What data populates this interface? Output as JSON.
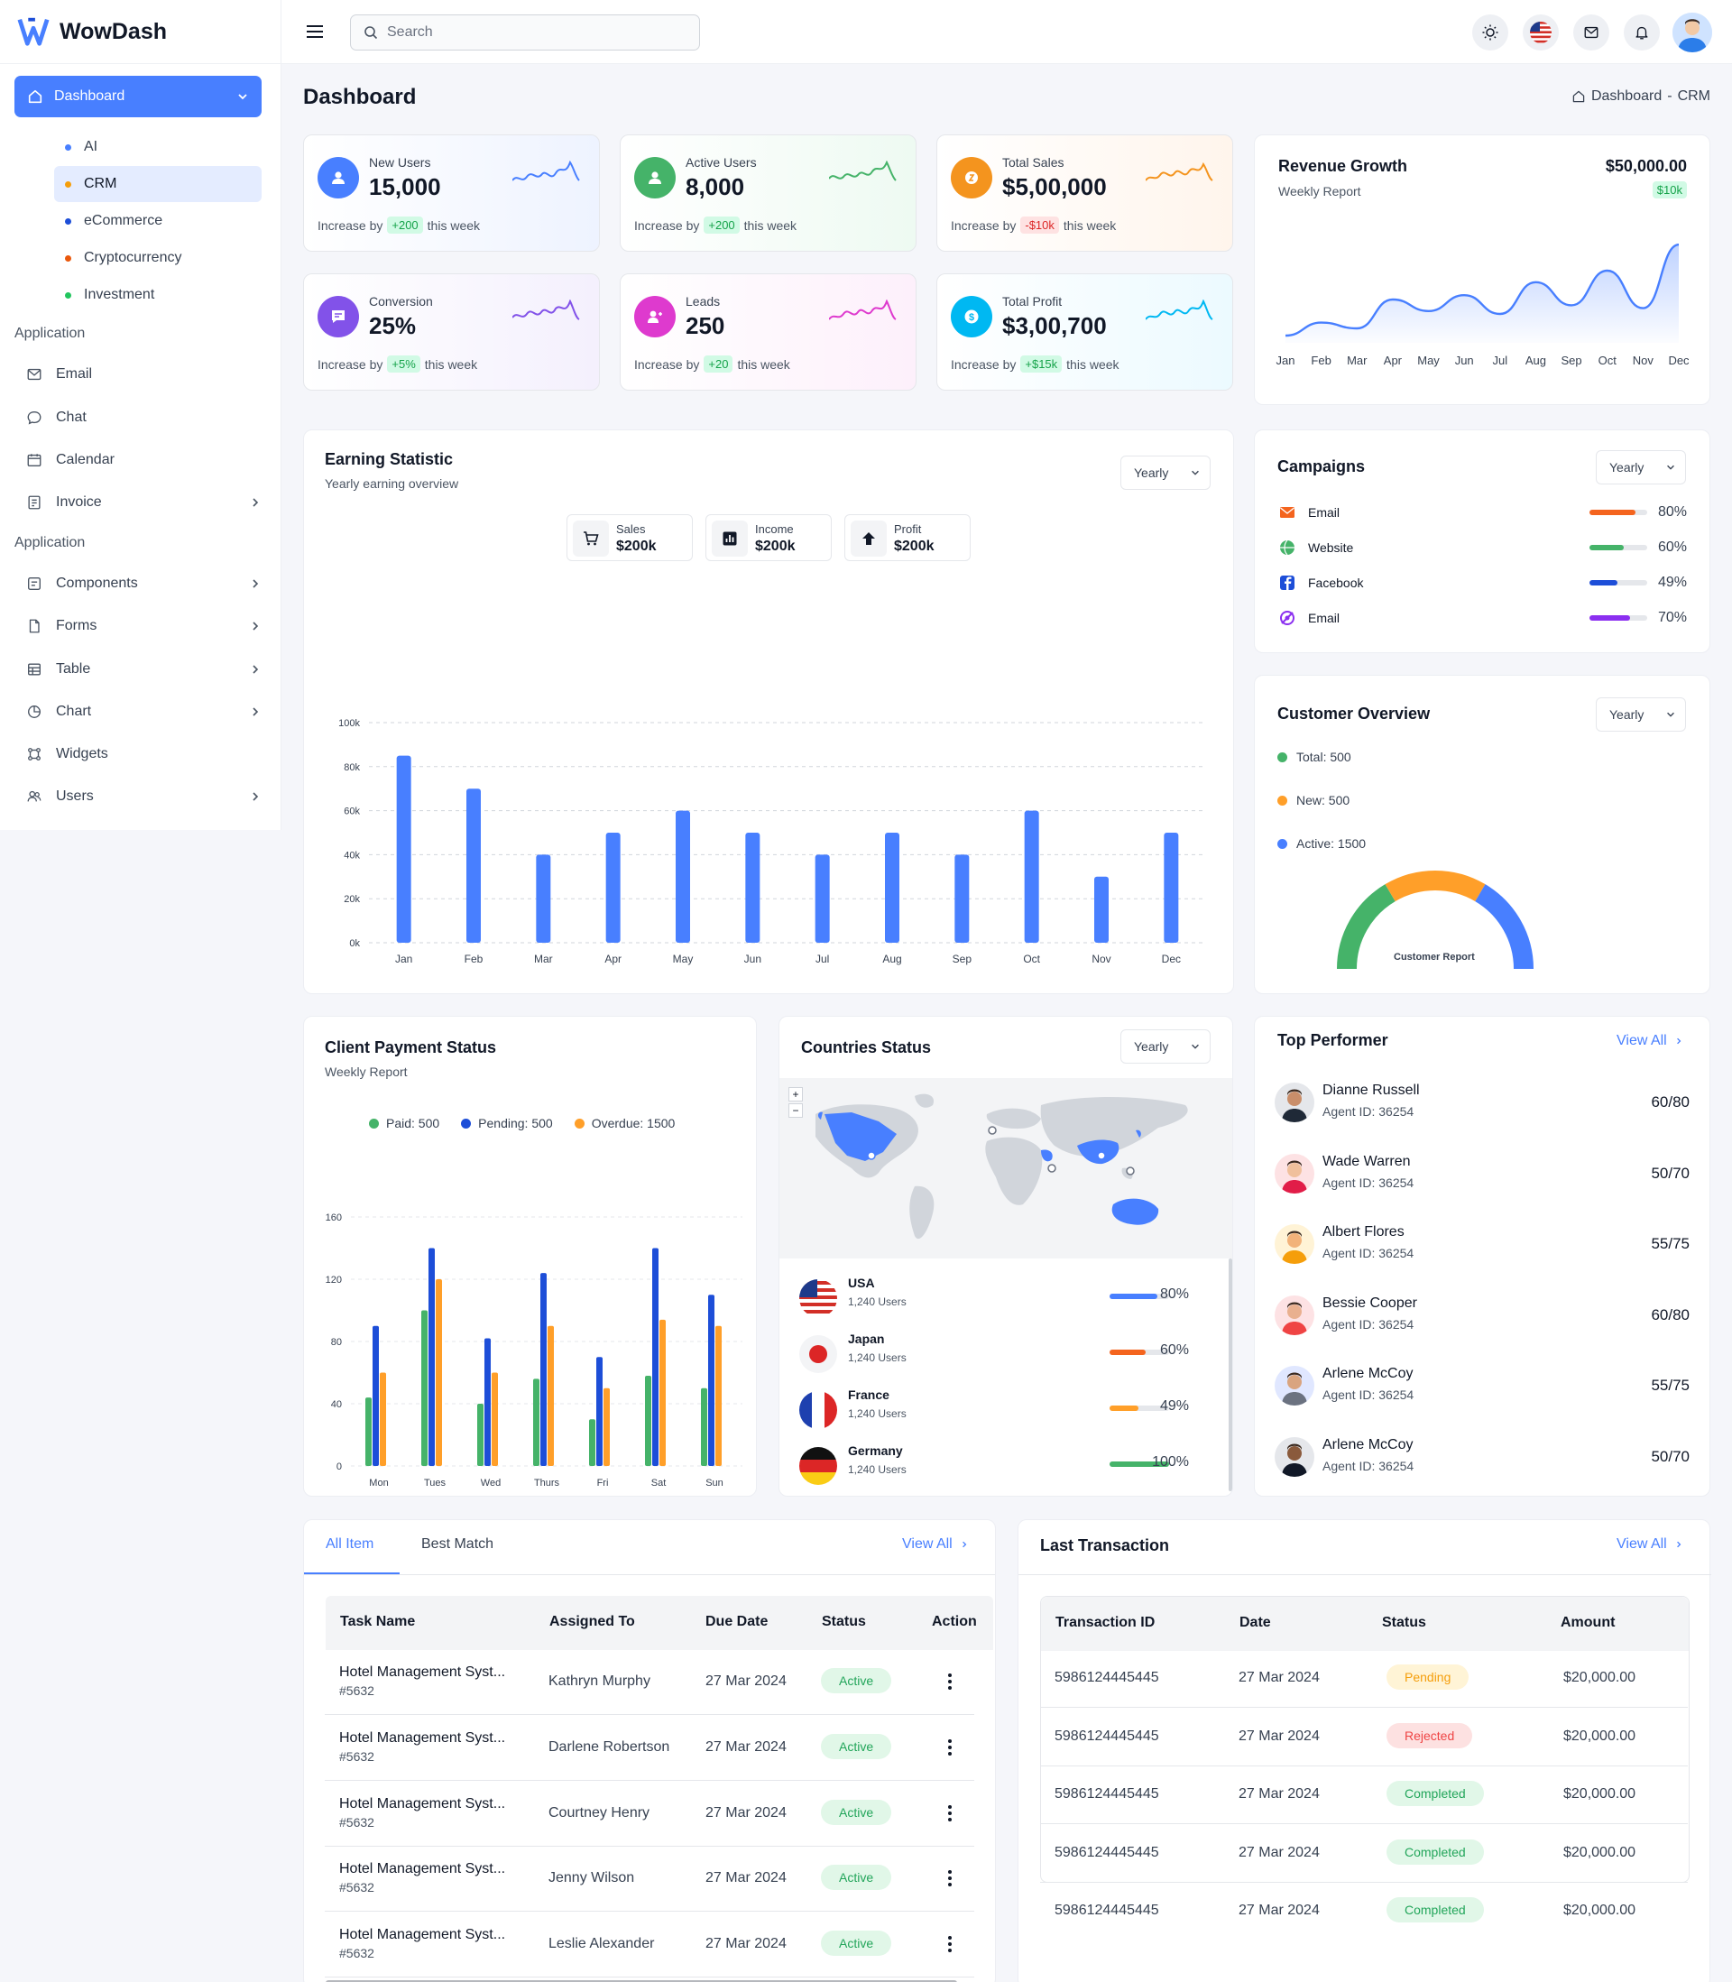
{
  "app": {
    "name": "WowDash"
  },
  "sidebar": {
    "dashboard_label": "Dashboard",
    "sub_items": [
      {
        "label": "AI",
        "color": "#487fff"
      },
      {
        "label": "CRM",
        "color": "#f59e0b"
      },
      {
        "label": "eCommerce",
        "color": "#1d4ed8"
      },
      {
        "label": "Cryptocurrency",
        "color": "#ea580c"
      },
      {
        "label": "Investment",
        "color": "#22c55e"
      }
    ],
    "section1": "Application",
    "section2": "Application",
    "group1": [
      {
        "label": "Email",
        "icon": "mail-icon",
        "has_chevron": false
      },
      {
        "label": "Chat",
        "icon": "chat-icon",
        "has_chevron": false
      },
      {
        "label": "Calendar",
        "icon": "calendar-icon",
        "has_chevron": false
      },
      {
        "label": "Invoice",
        "icon": "invoice-icon",
        "has_chevron": true
      }
    ],
    "group2": [
      {
        "label": "Components",
        "icon": "components-icon",
        "has_chevron": true
      },
      {
        "label": "Forms",
        "icon": "forms-icon",
        "has_chevron": true
      },
      {
        "label": "Table",
        "icon": "table-icon",
        "has_chevron": true
      },
      {
        "label": "Chart",
        "icon": "chart-icon",
        "has_chevron": true
      },
      {
        "label": "Widgets",
        "icon": "widgets-icon",
        "has_chevron": false
      },
      {
        "label": "Users",
        "icon": "users-icon",
        "has_chevron": true
      }
    ]
  },
  "topbar": {
    "search_placeholder": "Search"
  },
  "page": {
    "title": "Dashboard",
    "breadcrumb_home": "Dashboard",
    "breadcrumb_sep": "-",
    "breadcrumb_current": "CRM"
  },
  "stats": [
    {
      "label": "New Users",
      "value": "15,000",
      "prefix": "Increase by",
      "delta": "+200",
      "suffix": "this week",
      "delta_type": "up",
      "color": "#487fff",
      "bg": "#eef3ff"
    },
    {
      "label": "Active Users",
      "value": "8,000",
      "prefix": "Increase by",
      "delta": "+200",
      "suffix": "this week",
      "delta_type": "up",
      "color": "#45b369",
      "bg": "#eefaf2"
    },
    {
      "label": "Total Sales",
      "value": "$5,00,000",
      "prefix": "Increase by",
      "delta": "-$10k",
      "suffix": "this week",
      "delta_type": "down",
      "color": "#f4941e",
      "bg": "#fff5ec"
    },
    {
      "label": "Conversion",
      "value": "25%",
      "prefix": "Increase by",
      "delta": "+5%",
      "suffix": "this week",
      "delta_type": "up",
      "color": "#8252e9",
      "bg": "#f4f0fd"
    },
    {
      "label": "Leads",
      "value": "250",
      "prefix": "Increase by",
      "delta": "+20",
      "suffix": "this week",
      "delta_type": "up",
      "color": "#de3ace",
      "bg": "#fdf0fb"
    },
    {
      "label": "Total Profit",
      "value": "$3,00,700",
      "prefix": "Increase by",
      "delta": "+$15k",
      "suffix": "this week",
      "delta_type": "up",
      "color": "#00b8f2",
      "bg": "#ecfaff"
    }
  ],
  "revenue": {
    "title": "Revenue Growth",
    "subtitle": "Weekly Report",
    "amount": "$50,000.00",
    "badge": "$10k"
  },
  "earning": {
    "title": "Earning Statistic",
    "subtitle": "Yearly earning overview",
    "select": "Yearly",
    "minis": [
      {
        "label": "Sales",
        "value": "$200k",
        "icon": "cart-icon"
      },
      {
        "label": "Income",
        "value": "$200k",
        "icon": "bar-chart-icon"
      },
      {
        "label": "Profit",
        "value": "$200k",
        "icon": "upload-icon"
      }
    ]
  },
  "campaigns": {
    "title": "Campaigns",
    "select": "Yearly",
    "rows": [
      {
        "label": "Email",
        "pct": "80%",
        "value": 80,
        "color": "#f4641e",
        "icon": "mail-icon"
      },
      {
        "label": "Website",
        "pct": "60%",
        "value": 60,
        "color": "#45b369",
        "icon": "website-icon"
      },
      {
        "label": "Facebook",
        "pct": "49%",
        "value": 49,
        "color": "#1d4ed8",
        "icon": "facebook-icon"
      },
      {
        "label": "Email",
        "pct": "70%",
        "value": 70,
        "color": "#8b2ff0",
        "icon": "at-icon"
      }
    ]
  },
  "customer": {
    "title": "Customer Overview",
    "select": "Yearly",
    "gauge_label": "Customer Report",
    "legend": [
      {
        "label": "Total: 500",
        "color": "#45b369"
      },
      {
        "label": "New: 500",
        "color": "#ff9f29"
      },
      {
        "label": "Active: 1500",
        "color": "#487fff"
      }
    ]
  },
  "payment": {
    "title": "Client Payment Status",
    "subtitle": "Weekly Report",
    "legend": [
      {
        "label": "Paid: 500",
        "color": "#45b369"
      },
      {
        "label": "Pending: 500",
        "color": "#1d4ed8"
      },
      {
        "label": "Overdue: 1500",
        "color": "#ff9f29"
      }
    ]
  },
  "countries": {
    "title": "Countries Status",
    "select": "Yearly",
    "rows": [
      {
        "name": "USA",
        "users": "1,240 Users",
        "pct": "80%",
        "value": 80,
        "color": "#487fff",
        "flag": "usa-flag"
      },
      {
        "name": "Japan",
        "users": "1,240 Users",
        "pct": "60%",
        "value": 60,
        "color": "#f4641e",
        "flag": "japan-flag"
      },
      {
        "name": "France",
        "users": "1,240 Users",
        "pct": "49%",
        "value": 49,
        "color": "#ff9f29",
        "flag": "france-flag"
      },
      {
        "name": "Germany",
        "users": "1,240 Users",
        "pct": "100%",
        "value": 100,
        "color": "#45b369",
        "flag": "germany-flag"
      }
    ]
  },
  "performers": {
    "title": "Top Performer",
    "view_all": "View All",
    "rows": [
      {
        "name": "Dianne Russell",
        "id": "Agent ID: 36254",
        "score": "60/80"
      },
      {
        "name": "Wade Warren",
        "id": "Agent ID: 36254",
        "score": "50/70"
      },
      {
        "name": "Albert Flores",
        "id": "Agent ID: 36254",
        "score": "55/75"
      },
      {
        "name": "Bessie Cooper",
        "id": "Agent ID: 36254",
        "score": "60/80"
      },
      {
        "name": "Arlene McCoy",
        "id": "Agent ID: 36254",
        "score": "55/75"
      },
      {
        "name": "Arlene McCoy",
        "id": "Agent ID: 36254",
        "score": "50/70"
      }
    ]
  },
  "tasks": {
    "tab_active": "All Item",
    "tab_other": "Best Match",
    "view_all": "View All",
    "headers": [
      "Task Name",
      "Assigned To",
      "Due Date",
      "Status",
      "Action"
    ],
    "rows": [
      {
        "name": "Hotel Management Syst...",
        "id": "#5632",
        "assigned": "Kathryn Murphy",
        "due": "27 Mar 2024",
        "status": "Active"
      },
      {
        "name": "Hotel Management Syst...",
        "id": "#5632",
        "assigned": "Darlene Robertson",
        "due": "27 Mar 2024",
        "status": "Active"
      },
      {
        "name": "Hotel Management Syst...",
        "id": "#5632",
        "assigned": "Courtney Henry",
        "due": "27 Mar 2024",
        "status": "Active"
      },
      {
        "name": "Hotel Management Syst...",
        "id": "#5632",
        "assigned": "Jenny Wilson",
        "due": "27 Mar 2024",
        "status": "Active"
      },
      {
        "name": "Hotel Management Syst...",
        "id": "#5632",
        "assigned": "Leslie Alexander",
        "due": "27 Mar 2024",
        "status": "Active"
      }
    ]
  },
  "transactions": {
    "title": "Last Transaction",
    "view_all": "View All",
    "headers": [
      "Transaction ID",
      "Date",
      "Status",
      "Amount"
    ],
    "rows": [
      {
        "id": "5986124445445",
        "date": "27 Mar 2024",
        "status": "Pending",
        "kind": "pending",
        "amount": "$20,000.00"
      },
      {
        "id": "5986124445445",
        "date": "27 Mar 2024",
        "status": "Rejected",
        "kind": "rejected",
        "amount": "$20,000.00"
      },
      {
        "id": "5986124445445",
        "date": "27 Mar 2024",
        "status": "Completed",
        "kind": "completed",
        "amount": "$20,000.00"
      },
      {
        "id": "5986124445445",
        "date": "27 Mar 2024",
        "status": "Completed",
        "kind": "completed",
        "amount": "$20,000.00"
      },
      {
        "id": "5986124445445",
        "date": "27 Mar 2024",
        "status": "Completed",
        "kind": "completed",
        "amount": "$20,000.00"
      }
    ]
  },
  "chart_data": [
    {
      "type": "line",
      "title": "Revenue Growth",
      "categories": [
        "Jan",
        "Feb",
        "Mar",
        "Apr",
        "May",
        "Jun",
        "Jul",
        "Aug",
        "Sep",
        "Oct",
        "Nov",
        "Dec"
      ],
      "series": [
        {
          "values": [
            5,
            14,
            10,
            30,
            22,
            33,
            20,
            42,
            26,
            50,
            24,
            68
          ]
        }
      ],
      "ylim": [
        0,
        75
      ],
      "grid": false
    },
    {
      "type": "bar",
      "title": "Earning Statistic",
      "categories": [
        "Jan",
        "Feb",
        "Mar",
        "Apr",
        "May",
        "Jun",
        "Jul",
        "Aug",
        "Sep",
        "Oct",
        "Nov",
        "Dec"
      ],
      "values": [
        85,
        70,
        40,
        50,
        60,
        50,
        40,
        50,
        40,
        60,
        30,
        50
      ],
      "yticks": [
        "0k",
        "20k",
        "40k",
        "60k",
        "80k",
        "100k"
      ],
      "ylim": [
        0,
        100
      ],
      "grid": true
    },
    {
      "type": "bar",
      "title": "Client Payment Status",
      "categories": [
        "Mon",
        "Tues",
        "Wed",
        "Thurs",
        "Fri",
        "Sat",
        "Sun"
      ],
      "yticks": [
        "0",
        "40",
        "80",
        "120",
        "160"
      ],
      "ylim": [
        0,
        160
      ],
      "series": [
        {
          "name": "Paid",
          "values": [
            44,
            100,
            40,
            56,
            30,
            58,
            50
          ]
        },
        {
          "name": "Pending",
          "values": [
            90,
            140,
            82,
            124,
            70,
            140,
            110
          ]
        },
        {
          "name": "Overdue",
          "values": [
            60,
            120,
            60,
            90,
            50,
            94,
            90
          ]
        }
      ]
    },
    {
      "type": "pie",
      "title": "Customer Overview",
      "categories": [
        "Total",
        "New",
        "Active"
      ],
      "values": [
        500,
        500,
        1500
      ]
    }
  ]
}
